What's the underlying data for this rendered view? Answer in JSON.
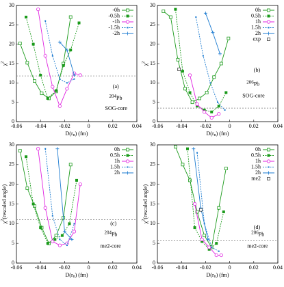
{
  "chart_data": [
    {
      "type": "line",
      "panel": "(a)",
      "mass": "204",
      "element": "Pb",
      "model": "SOG-core",
      "xlabel": "D(r",
      "xlabel_sub": "n",
      "xlabel_end": ") (fm)",
      "ylabel": "χ",
      "ylabel_sup": "2",
      "ylabel_end": "",
      "xlim": [
        -0.06,
        0.04
      ],
      "xticks": [
        -0.06,
        -0.04,
        -0.02,
        0,
        0.02,
        0.04
      ],
      "ylim": [
        0,
        30
      ],
      "yticks": [
        0,
        5,
        10,
        15,
        20,
        25,
        30
      ],
      "ref_line": 11.8,
      "series": [
        {
          "name": "-0h",
          "color": "#1a9a1a",
          "style": "solid",
          "marker": "open-square",
          "x": [
            -0.057,
            -0.051,
            -0.045,
            -0.039,
            -0.033,
            -0.027,
            -0.021,
            -0.015
          ],
          "values": [
            20.2,
            15.2,
            10.5,
            7.3,
            6,
            7.8,
            15,
            27
          ]
        },
        {
          "name": "-0.5h",
          "color": "#1a9a1a",
          "style": "dashed",
          "marker": "filled-square",
          "x": [
            -0.052,
            -0.046,
            -0.04,
            -0.034,
            -0.027,
            -0.021,
            -0.015,
            -0.008
          ],
          "values": [
            27,
            20,
            12,
            6,
            8,
            14.5,
            18.5,
            25.5
          ]
        },
        {
          "name": "-1h",
          "color": "#e020e0",
          "style": "solid",
          "marker": "open-circle",
          "x": [
            -0.042,
            -0.036,
            -0.03,
            -0.024,
            -0.018,
            -0.012,
            -0.007
          ],
          "values": [
            29,
            17,
            9,
            4,
            8.5,
            12.5,
            12
          ]
        },
        {
          "name": "-1.5h",
          "color": "#1a7ad0",
          "style": "dashed",
          "marker": "dot",
          "x": [
            -0.036,
            -0.03,
            -0.024,
            -0.018,
            -0.012
          ],
          "values": [
            26,
            17,
            11,
            10,
            11
          ]
        },
        {
          "name": "-2h",
          "color": "#1a7ad0",
          "style": "solid",
          "marker": "plus",
          "x": [
            -0.024,
            -0.018,
            -0.012
          ],
          "values": [
            20.5,
            18.5,
            12
          ]
        }
      ]
    },
    {
      "type": "line",
      "panel": "(b)",
      "mass": "206",
      "element": "Pb",
      "model": "SOG-core",
      "xlabel": "D(r",
      "xlabel_sub": "n",
      "xlabel_end": ") (fm)",
      "ylabel": "χ",
      "ylabel_sup": "2",
      "ylabel_end": "",
      "xlim": [
        -0.06,
        0.04
      ],
      "xticks": [
        -0.06,
        -0.04,
        -0.02,
        0,
        0.02,
        0.04
      ],
      "ylim": [
        0,
        30
      ],
      "yticks": [
        0,
        5,
        10,
        15,
        20,
        25,
        30
      ],
      "ref_line": 3.5,
      "series": [
        {
          "name": "0h",
          "color": "#1a9a1a",
          "style": "solid",
          "marker": "open-square",
          "x": [
            -0.055,
            -0.049,
            -0.043,
            -0.037,
            -0.031,
            -0.025,
            -0.019,
            -0.013,
            -0.007,
            -0.001
          ],
          "values": [
            28.5,
            27,
            16,
            8.5,
            5,
            6,
            7.5,
            11.5,
            15,
            21.5
          ]
        },
        {
          "name": "0.5h",
          "color": "#1a9a1a",
          "style": "dashed",
          "marker": "filled-square",
          "x": [
            -0.045,
            -0.039,
            -0.033,
            -0.027,
            -0.021,
            -0.015,
            -0.009,
            -0.003
          ],
          "values": [
            29,
            13,
            7.5,
            4,
            3,
            2.5,
            4,
            7.5
          ]
        },
        {
          "name": "1h",
          "color": "#e020e0",
          "style": "solid",
          "marker": "open-circle",
          "x": [
            -0.033,
            -0.027,
            -0.021,
            -0.015,
            -0.009
          ],
          "values": [
            12,
            4.5,
            2.5,
            1,
            2
          ]
        },
        {
          "name": "1.5h",
          "color": "#1a7ad0",
          "style": "dashed",
          "marker": "dot",
          "x": [
            -0.028,
            -0.022,
            -0.016,
            -0.01,
            -0.004
          ],
          "values": [
            27,
            17,
            10,
            5,
            3
          ]
        },
        {
          "name": "2h",
          "color": "#1a7ad0",
          "style": "solid",
          "marker": "plus",
          "x": [
            -0.02,
            -0.014,
            -0.008
          ],
          "values": [
            28,
            23,
            17.5
          ]
        },
        {
          "name": "exp",
          "color": "#333333",
          "style": "none",
          "marker": "open-square",
          "x": [
            -0.042
          ],
          "values": [
            13.5
          ]
        }
      ]
    },
    {
      "type": "line",
      "panel": "(c)",
      "mass": "204",
      "element": "Pb",
      "model": "me2-core",
      "xlabel": "D(r",
      "xlabel_sub": "n",
      "xlabel_end": ") (fm)",
      "ylabel": "χ",
      "ylabel_sup": "2",
      "ylabel_end": "(rescaled angle)",
      "xlim": [
        -0.06,
        0.04
      ],
      "xticks": [
        -0.06,
        -0.04,
        -0.02,
        0,
        0.02,
        0.04
      ],
      "ylim": [
        0,
        30
      ],
      "yticks": [
        0,
        5,
        10,
        15,
        20,
        25,
        30
      ],
      "ref_line": 11,
      "series": [
        {
          "name": "0h",
          "color": "#1a9a1a",
          "style": "solid",
          "marker": "open-square",
          "x": [
            -0.057,
            -0.051,
            -0.045,
            -0.039,
            -0.033,
            -0.027,
            -0.021,
            -0.015
          ],
          "values": [
            28.5,
            19,
            14.5,
            9,
            5,
            7,
            11.5,
            25
          ]
        },
        {
          "name": "0.5h",
          "color": "#1a9a1a",
          "style": "dashed",
          "marker": "filled-square",
          "x": [
            -0.052,
            -0.046,
            -0.04,
            -0.034,
            -0.028,
            -0.022,
            -0.016,
            -0.01
          ],
          "values": [
            27,
            15,
            9,
            5,
            6,
            7,
            10,
            21
          ]
        },
        {
          "name": "1h",
          "color": "#e020e0",
          "style": "solid",
          "marker": "open-circle",
          "x": [
            -0.042,
            -0.036,
            -0.03,
            -0.024,
            -0.018,
            -0.012,
            -0.007
          ],
          "values": [
            29,
            14,
            5.5,
            4.5,
            5,
            8,
            20
          ]
        },
        {
          "name": "1.5h",
          "color": "#1a7ad0",
          "style": "dashed",
          "marker": "dot",
          "x": [
            -0.036,
            -0.03,
            -0.024,
            -0.018,
            -0.012
          ],
          "values": [
            29,
            12,
            6,
            4.5,
            10
          ]
        },
        {
          "name": "2h",
          "color": "#1a7ad0",
          "style": "solid",
          "marker": "plus",
          "x": [
            -0.026,
            -0.02,
            -0.014
          ],
          "values": [
            29,
            8,
            6
          ]
        }
      ]
    },
    {
      "type": "line",
      "panel": "(d)",
      "mass": "206",
      "element": "Pb",
      "model": "me2-core",
      "xlabel": "D(r",
      "xlabel_sub": "n",
      "xlabel_end": ") (fm)",
      "ylabel": "χ",
      "ylabel_sup": "2",
      "ylabel_end": "(rescaled angle)",
      "xlim": [
        -0.06,
        0.04
      ],
      "xticks": [
        -0.06,
        -0.04,
        -0.02,
        0,
        0.02,
        0.04
      ],
      "ylim": [
        0,
        30
      ],
      "yticks": [
        0,
        5,
        10,
        15,
        20,
        25,
        30
      ],
      "ref_line": 5.8,
      "series": [
        {
          "name": "0h",
          "color": "#1a9a1a",
          "style": "solid",
          "marker": "open-square",
          "x": [
            -0.045,
            -0.039,
            -0.033,
            -0.027,
            -0.021,
            -0.015,
            -0.009,
            -0.003
          ],
          "values": [
            29.5,
            25,
            21,
            13,
            7,
            4,
            14,
            24
          ]
        },
        {
          "name": "0.5h",
          "color": "#1a9a1a",
          "style": "dashed",
          "marker": "filled-square",
          "x": [
            -0.035,
            -0.029,
            -0.023,
            -0.017,
            -0.011,
            -0.005
          ],
          "values": [
            29,
            9,
            5.5,
            3.5,
            5,
            13
          ]
        },
        {
          "name": "1h",
          "color": "#e020e0",
          "style": "solid",
          "marker": "open-circle",
          "x": [
            -0.029,
            -0.023,
            -0.017,
            -0.011,
            -0.007
          ],
          "values": [
            15,
            6,
            4,
            2,
            2
          ]
        },
        {
          "name": "1.5h",
          "color": "#1a7ad0",
          "style": "dashed",
          "marker": "dot",
          "x": [
            -0.027,
            -0.021,
            -0.015,
            -0.009
          ],
          "values": [
            28,
            10,
            4,
            3
          ]
        },
        {
          "name": "2h",
          "color": "#1a7ad0",
          "style": "solid",
          "marker": "plus",
          "x": [
            -0.03,
            -0.024,
            -0.018
          ],
          "values": [
            29,
            14,
            6
          ]
        },
        {
          "name": "me2",
          "color": "#333333",
          "style": "none",
          "marker": "open-square",
          "x": [
            -0.024
          ],
          "values": [
            13.5
          ]
        }
      ]
    }
  ]
}
